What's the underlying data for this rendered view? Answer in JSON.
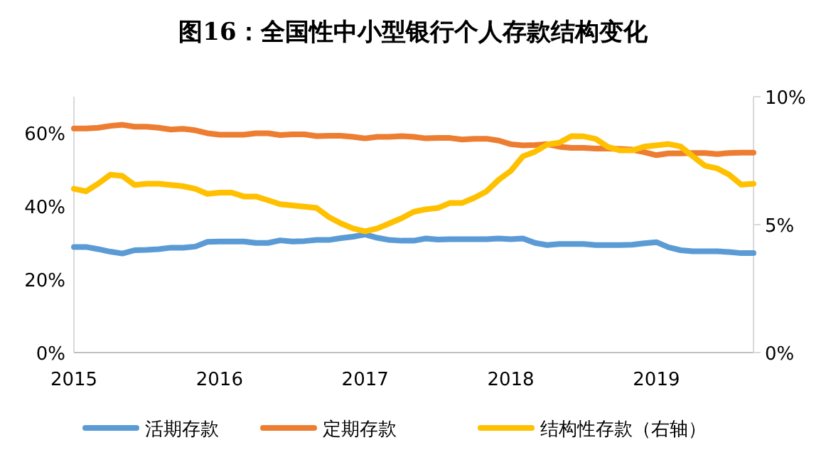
{
  "chart_data": {
    "type": "line",
    "title": "图16：全国性中小型银行个人存款结构变化",
    "x": [
      "2015-01",
      "2015-02",
      "2015-03",
      "2015-04",
      "2015-05",
      "2015-06",
      "2015-07",
      "2015-08",
      "2015-09",
      "2015-10",
      "2015-11",
      "2015-12",
      "2016-01",
      "2016-02",
      "2016-03",
      "2016-04",
      "2016-05",
      "2016-06",
      "2016-07",
      "2016-08",
      "2016-09",
      "2016-10",
      "2016-11",
      "2016-12",
      "2017-01",
      "2017-02",
      "2017-03",
      "2017-04",
      "2017-05",
      "2017-06",
      "2017-07",
      "2017-08",
      "2017-09",
      "2017-10",
      "2017-11",
      "2017-12",
      "2018-01",
      "2018-02",
      "2018-03",
      "2018-04",
      "2018-05",
      "2018-06",
      "2018-07",
      "2018-08",
      "2018-09",
      "2018-10",
      "2018-11",
      "2018-12",
      "2019-01",
      "2019-02",
      "2019-03",
      "2019-04",
      "2019-05",
      "2019-06",
      "2019-07",
      "2019-08",
      "2019-09"
    ],
    "series": [
      {
        "name": "活期存款",
        "color": "#5b9bd5",
        "values": [
          28.9,
          28.9,
          28.3,
          27.6,
          27.1,
          28,
          28.1,
          28.3,
          28.7,
          28.7,
          29,
          30.3,
          30.4,
          30.4,
          30.4,
          30,
          30,
          30.7,
          30.4,
          30.5,
          30.8,
          30.8,
          31.3,
          31.7,
          32.3,
          31.4,
          30.8,
          30.6,
          30.6,
          31.2,
          30.9,
          31,
          31,
          31,
          31,
          31.2,
          31,
          31.2,
          30,
          29.4,
          29.7,
          29.7,
          29.7,
          29.4,
          29.4,
          29.4,
          29.5,
          29.9,
          30.2,
          28.8,
          28,
          27.7,
          27.7,
          27.7,
          27.5,
          27.2,
          27.2
        ]
      },
      {
        "name": "定期存款",
        "color": "#ed7d31",
        "values": [
          61.3,
          61.3,
          61.5,
          62,
          62.3,
          61.8,
          61.8,
          61.5,
          61,
          61.2,
          60.8,
          60,
          59.6,
          59.6,
          59.6,
          60,
          60,
          59.5,
          59.7,
          59.7,
          59.2,
          59.3,
          59.3,
          59,
          58.6,
          59,
          59,
          59.2,
          59,
          58.6,
          58.7,
          58.7,
          58.3,
          58.5,
          58.5,
          58,
          57,
          56.7,
          56.8,
          57,
          56.3,
          56,
          56,
          55.8,
          55.8,
          55.7,
          55.5,
          54.8,
          54,
          54.5,
          54.5,
          54.6,
          54.6,
          54.3,
          54.6,
          54.7,
          54.7
        ]
      },
      {
        "name": "结构性存款（右轴）",
        "color": "#ffc000",
        "axis": "y2",
        "values": [
          6.4,
          6.3,
          6.6,
          6.95,
          6.9,
          6.55,
          6.6,
          6.6,
          6.55,
          6.5,
          6.4,
          6.2,
          6.25,
          6.25,
          6.1,
          6.1,
          5.95,
          5.8,
          5.75,
          5.7,
          5.65,
          5.3,
          5.05,
          4.85,
          4.74,
          4.85,
          5.05,
          5.25,
          5.5,
          5.6,
          5.65,
          5.85,
          5.85,
          6.05,
          6.3,
          6.75,
          7.1,
          7.67,
          7.85,
          8.13,
          8.2,
          8.46,
          8.45,
          8.35,
          8.04,
          7.9,
          7.9,
          8.05,
          8.1,
          8.15,
          8.05,
          7.67,
          7.3,
          7.2,
          6.95,
          6.56,
          6.6
        ]
      }
    ],
    "xlim": [
      "2015-01",
      "2019-09"
    ],
    "xticks": [
      {
        "value": "2015-01",
        "label": "2015"
      },
      {
        "value": "2016-01",
        "label": "2016"
      },
      {
        "value": "2017-01",
        "label": "2017"
      },
      {
        "value": "2018-01",
        "label": "2018"
      },
      {
        "value": "2019-01",
        "label": "2019"
      }
    ],
    "ylim": [
      0,
      70
    ],
    "yticks": [
      {
        "value": 0,
        "label": "0%"
      },
      {
        "value": 20,
        "label": "20%"
      },
      {
        "value": 40,
        "label": "40%"
      },
      {
        "value": 60,
        "label": "60%"
      }
    ],
    "y2lim": [
      0,
      10
    ],
    "y2ticks": [
      {
        "value": 0,
        "label": "0%"
      },
      {
        "value": 5,
        "label": "5%"
      },
      {
        "value": 10,
        "label": "10%"
      }
    ],
    "legend": "bottom",
    "grid": false,
    "marker": "none"
  }
}
